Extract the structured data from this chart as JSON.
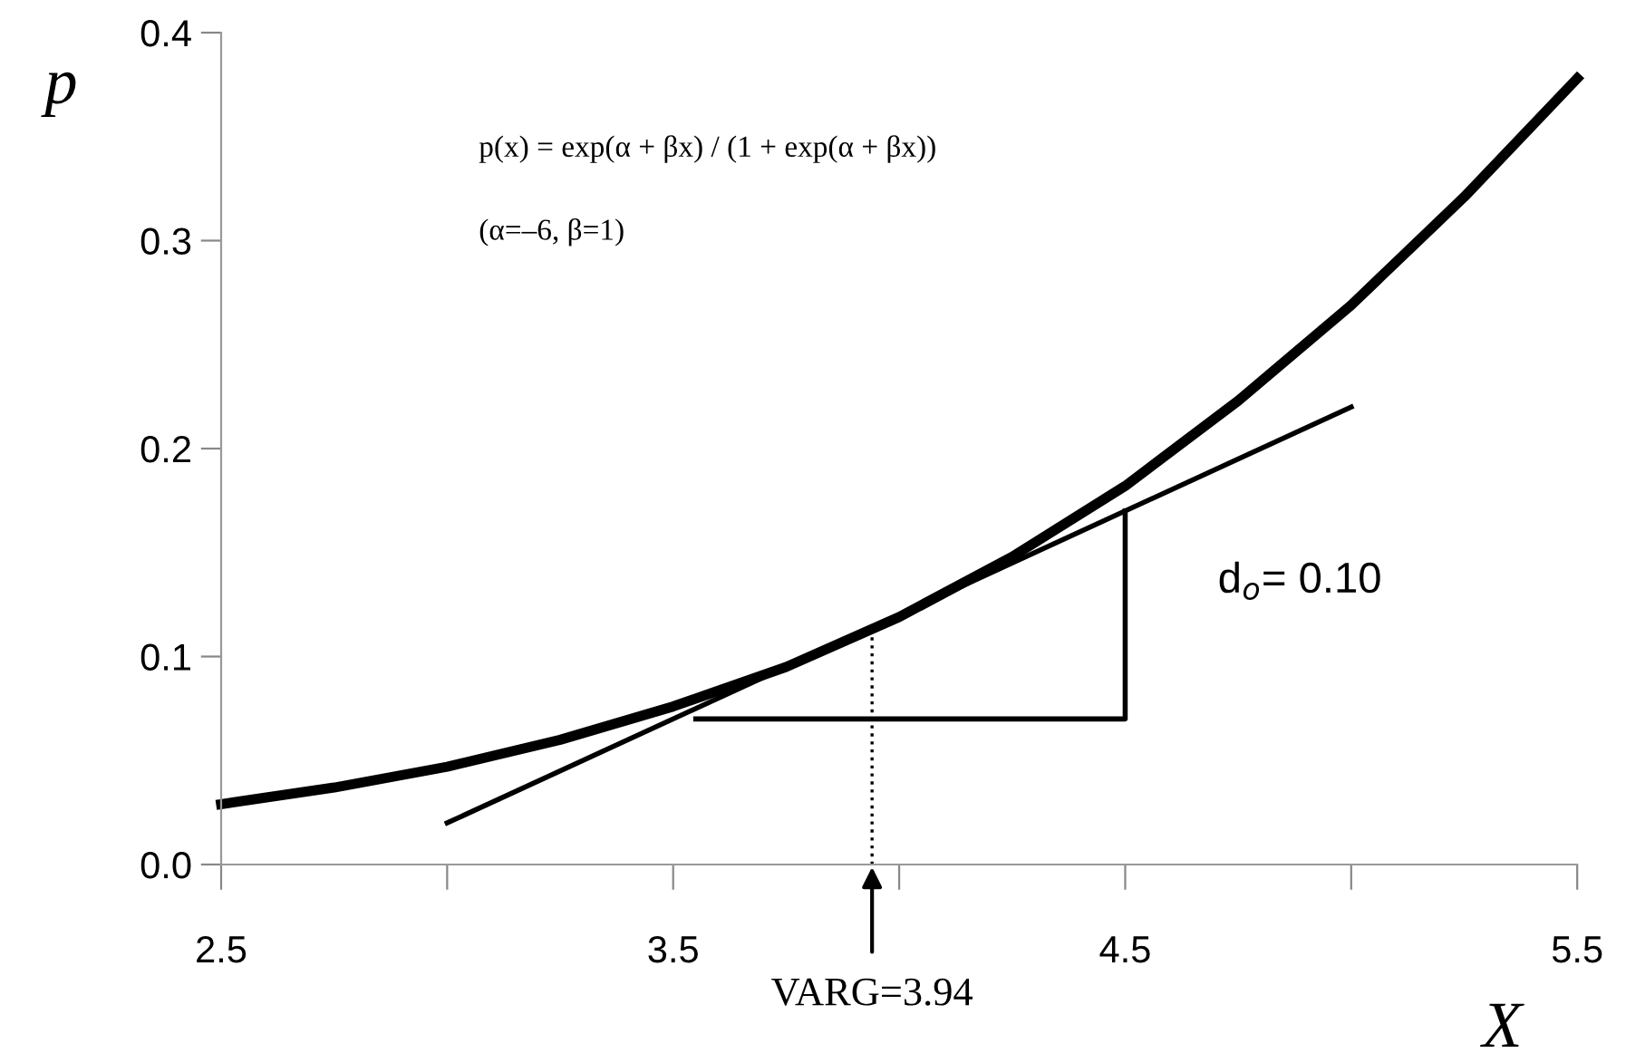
{
  "chart_data": {
    "type": "line",
    "xlabel": "X",
    "ylabel": "p",
    "series": [
      {
        "color": "#000000",
        "x": [
          2.5,
          2.75,
          3,
          3.25,
          3.5,
          3.75,
          4,
          4.25,
          4.5,
          4.75,
          5,
          5.25,
          5.5
        ],
        "values": [
          0.029,
          0.037,
          0.047,
          0.06,
          0.076,
          0.095,
          0.119,
          0.148,
          0.182,
          0.223,
          0.269,
          0.321,
          0.378
        ]
      },
      {
        "color": "#000000",
        "x": [
          3,
          5
        ],
        "values": [
          0.02,
          0.22
        ]
      },
      {
        "color": "#000000",
        "x": [
          3.55,
          4.5,
          4.5
        ],
        "values": [
          0.07,
          0.07,
          0.17
        ]
      },
      {
        "color": "#000000",
        "line_style": "dotted",
        "x": [
          3.94,
          3.94
        ],
        "values": [
          0,
          0.113
        ]
      }
    ],
    "xlim": [
      2.5,
      5.5
    ],
    "ylim": [
      0,
      0.4
    ],
    "xticks": [
      2.5,
      {
        "value": 3,
        "label": null
      },
      3.5,
      {
        "value": 4,
        "label": null
      },
      4.5,
      {
        "value": 5,
        "label": null
      },
      5.5
    ],
    "yticks": [
      {
        "value": 0,
        "label": "0.0"
      },
      0.1,
      0.2,
      0.3,
      0.4
    ],
    "annotations": [
      "p(x) = exp(α + βx) / (1 + exp(α + βx))",
      "(α=–6, β=1)",
      "d$_{o}$= 0.10",
      {
        "text": "VARG=3.94",
        "x": 3.94,
        "y": 0
      }
    ],
    "grid": false,
    "legend": false,
    "marker": "none",
    "line_style": "solid"
  }
}
